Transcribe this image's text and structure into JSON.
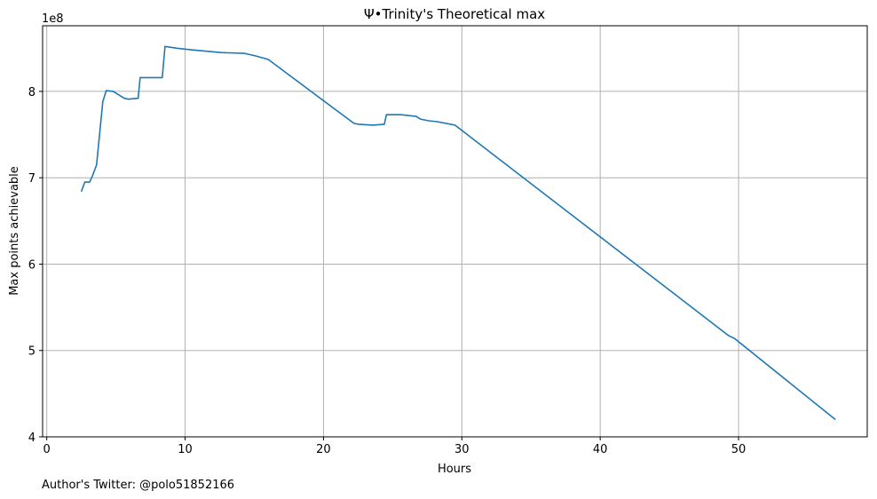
{
  "chart_data": {
    "type": "line",
    "title": "Ψ•Trinity's Theoretical max",
    "xlabel": "Hours",
    "ylabel": "Max points achievable",
    "y_offset_text": "1e8",
    "footnote": "Author's Twitter: @polo51852166",
    "xlim": [
      -0.3,
      59.3
    ],
    "ylim": [
      4.0,
      8.76
    ],
    "x_ticks": [
      0,
      10,
      20,
      30,
      40,
      50
    ],
    "y_ticks": [
      4,
      5,
      6,
      7,
      8
    ],
    "x_tick_labels": [
      "0",
      "10",
      "20",
      "30",
      "40",
      "50"
    ],
    "y_tick_labels": [
      "4",
      "5",
      "6",
      "7",
      "8"
    ],
    "grid": true,
    "line_color": "#1f77b4",
    "series": [
      {
        "x": [
          2.5,
          2.75,
          3.1,
          3.3,
          3.6,
          4.05,
          4.3,
          4.8,
          5.2,
          5.6,
          5.9,
          6.6,
          6.75,
          7.3,
          8.0,
          8.35,
          8.55,
          9.4,
          10.5,
          12.6,
          14.3,
          15.1,
          16.0,
          22.2,
          22.5,
          23.6,
          24.4,
          24.55,
          25.6,
          26.7,
          27.0,
          27.6,
          28.2,
          29.5,
          49.3,
          49.7,
          57.0
        ],
        "y": [
          6.84,
          6.95,
          6.95,
          7.02,
          7.15,
          7.88,
          8.01,
          8.0,
          7.96,
          7.92,
          7.91,
          7.92,
          8.16,
          8.16,
          8.16,
          8.16,
          8.52,
          8.5,
          8.48,
          8.45,
          8.44,
          8.41,
          8.37,
          7.63,
          7.62,
          7.61,
          7.62,
          7.73,
          7.73,
          7.71,
          7.68,
          7.66,
          7.65,
          7.61,
          5.17,
          5.14,
          4.2
        ]
      }
    ]
  }
}
